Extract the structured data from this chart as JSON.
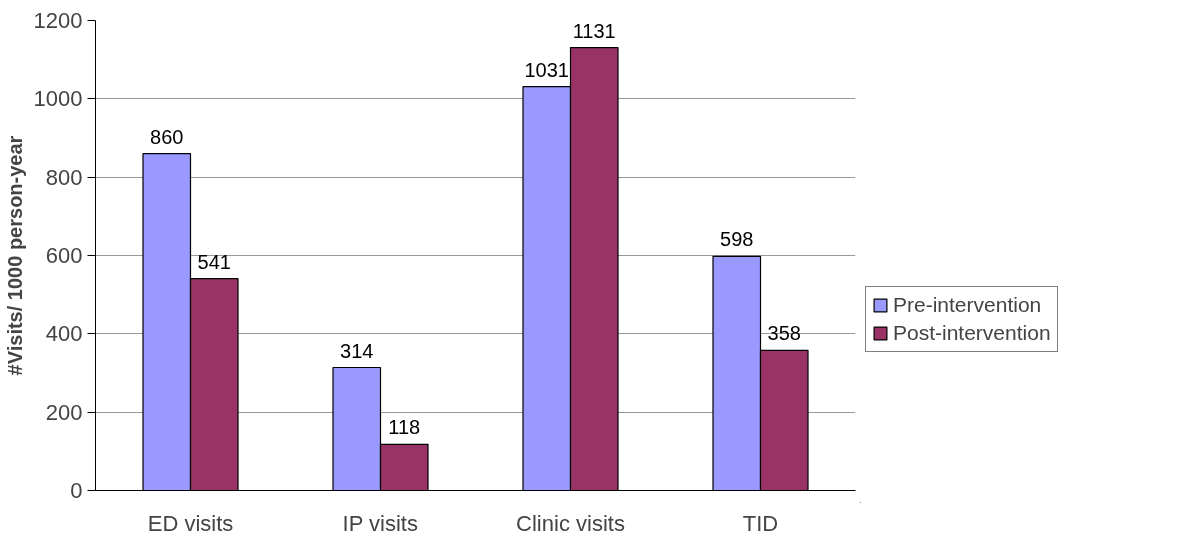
{
  "chart_data": {
    "type": "bar",
    "ylabel": "#Visits/ 1000 person-year",
    "categories": [
      "ED visits",
      "IP visits",
      "Clinic visits",
      "TID"
    ],
    "series": [
      {
        "name": "Pre-intervention",
        "color": "#9999ff",
        "values": [
          860,
          314,
          1031,
          598
        ]
      },
      {
        "name": "Post-intervention",
        "color": "#993366",
        "values": [
          541,
          118,
          1131,
          358
        ]
      }
    ],
    "ylim": [
      0,
      1200
    ],
    "yticks": [
      0,
      200,
      400,
      600,
      800,
      1000,
      1200
    ],
    "grid": "y",
    "legend": "right",
    "data_labels": true
  }
}
